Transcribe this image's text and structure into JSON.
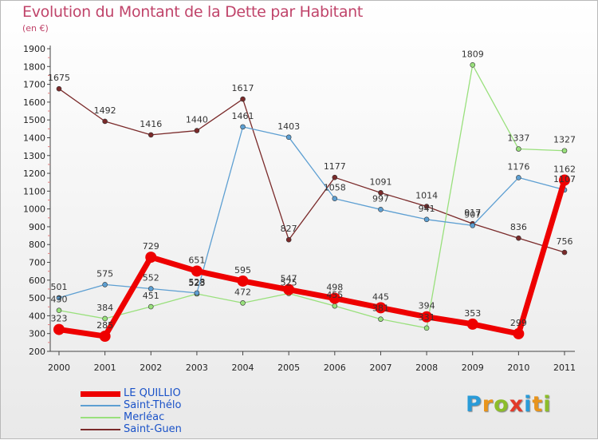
{
  "header": {
    "title": "Evolution du Montant de la Dette par Habitant",
    "unit": "(en €)"
  },
  "logo": {
    "text": "Proxiti",
    "letters": [
      "P",
      "r",
      "o",
      "x",
      "i",
      "t",
      "i"
    ],
    "colors": [
      "#2a9bd8",
      "#e8941c",
      "#8cbd2a",
      "#e23a2a",
      "#2a9bd8",
      "#e8941c",
      "#8cbd2a"
    ]
  },
  "chart_data": {
    "type": "line",
    "title": "Evolution du Montant de la Dette par Habitant",
    "subtitle": "(en €)",
    "xlabel": "",
    "ylabel": "",
    "categories": [
      "2000",
      "2001",
      "2002",
      "2003",
      "2004",
      "2005",
      "2006",
      "2007",
      "2008",
      "2009",
      "2010",
      "2011"
    ],
    "ylim": [
      200,
      1900
    ],
    "yticks": [
      200,
      300,
      400,
      500,
      600,
      700,
      800,
      900,
      1000,
      1100,
      1200,
      1300,
      1400,
      1500,
      1600,
      1700,
      1800,
      1900
    ],
    "grid": false,
    "legend_position": "bottom-left",
    "series": [
      {
        "name": "LE QUILLIO",
        "color": "#ee0000",
        "width": 7,
        "marker": 7,
        "values": [
          323,
          285,
          729,
          651,
          595,
          547,
          498,
          445,
          394,
          353,
          299,
          1162
        ],
        "labels": [
          "323",
          "285",
          "729",
          "651",
          "595",
          "547",
          "498",
          "445",
          "394",
          "353",
          "299",
          "1162"
        ]
      },
      {
        "name": "Saint-Thélo",
        "color": "#5d9fd2",
        "width": 1.3,
        "marker": 3,
        "values": [
          501,
          575,
          552,
          528,
          1461,
          1403,
          1058,
          997,
          941,
          907,
          1176,
          1107
        ],
        "labels": [
          "501",
          "575",
          "552",
          "528",
          "1461",
          "1403",
          "1058",
          "997",
          "941",
          "907",
          "1176",
          "1107"
        ]
      },
      {
        "name": "Merléac",
        "color": "#99e07c",
        "width": 1.3,
        "marker": 3,
        "values": [
          430,
          384,
          451,
          523,
          472,
          525,
          455,
          381,
          331,
          1809,
          1337,
          1327
        ],
        "labels": [
          "430",
          "384",
          "451",
          "523",
          "472",
          "525",
          "455",
          "381",
          "331",
          "1809",
          "1337",
          "1327"
        ]
      },
      {
        "name": "Saint-Guen",
        "color": "#7a2a2a",
        "width": 1.3,
        "marker": 3,
        "values": [
          1675,
          1492,
          1416,
          1440,
          1617,
          827,
          1177,
          1091,
          1014,
          917,
          836,
          756
        ],
        "labels": [
          "1675",
          "1492",
          "1416",
          "1440",
          "1617",
          "827",
          "1177",
          "1091",
          "1014",
          "917",
          "836",
          "756"
        ]
      }
    ]
  }
}
